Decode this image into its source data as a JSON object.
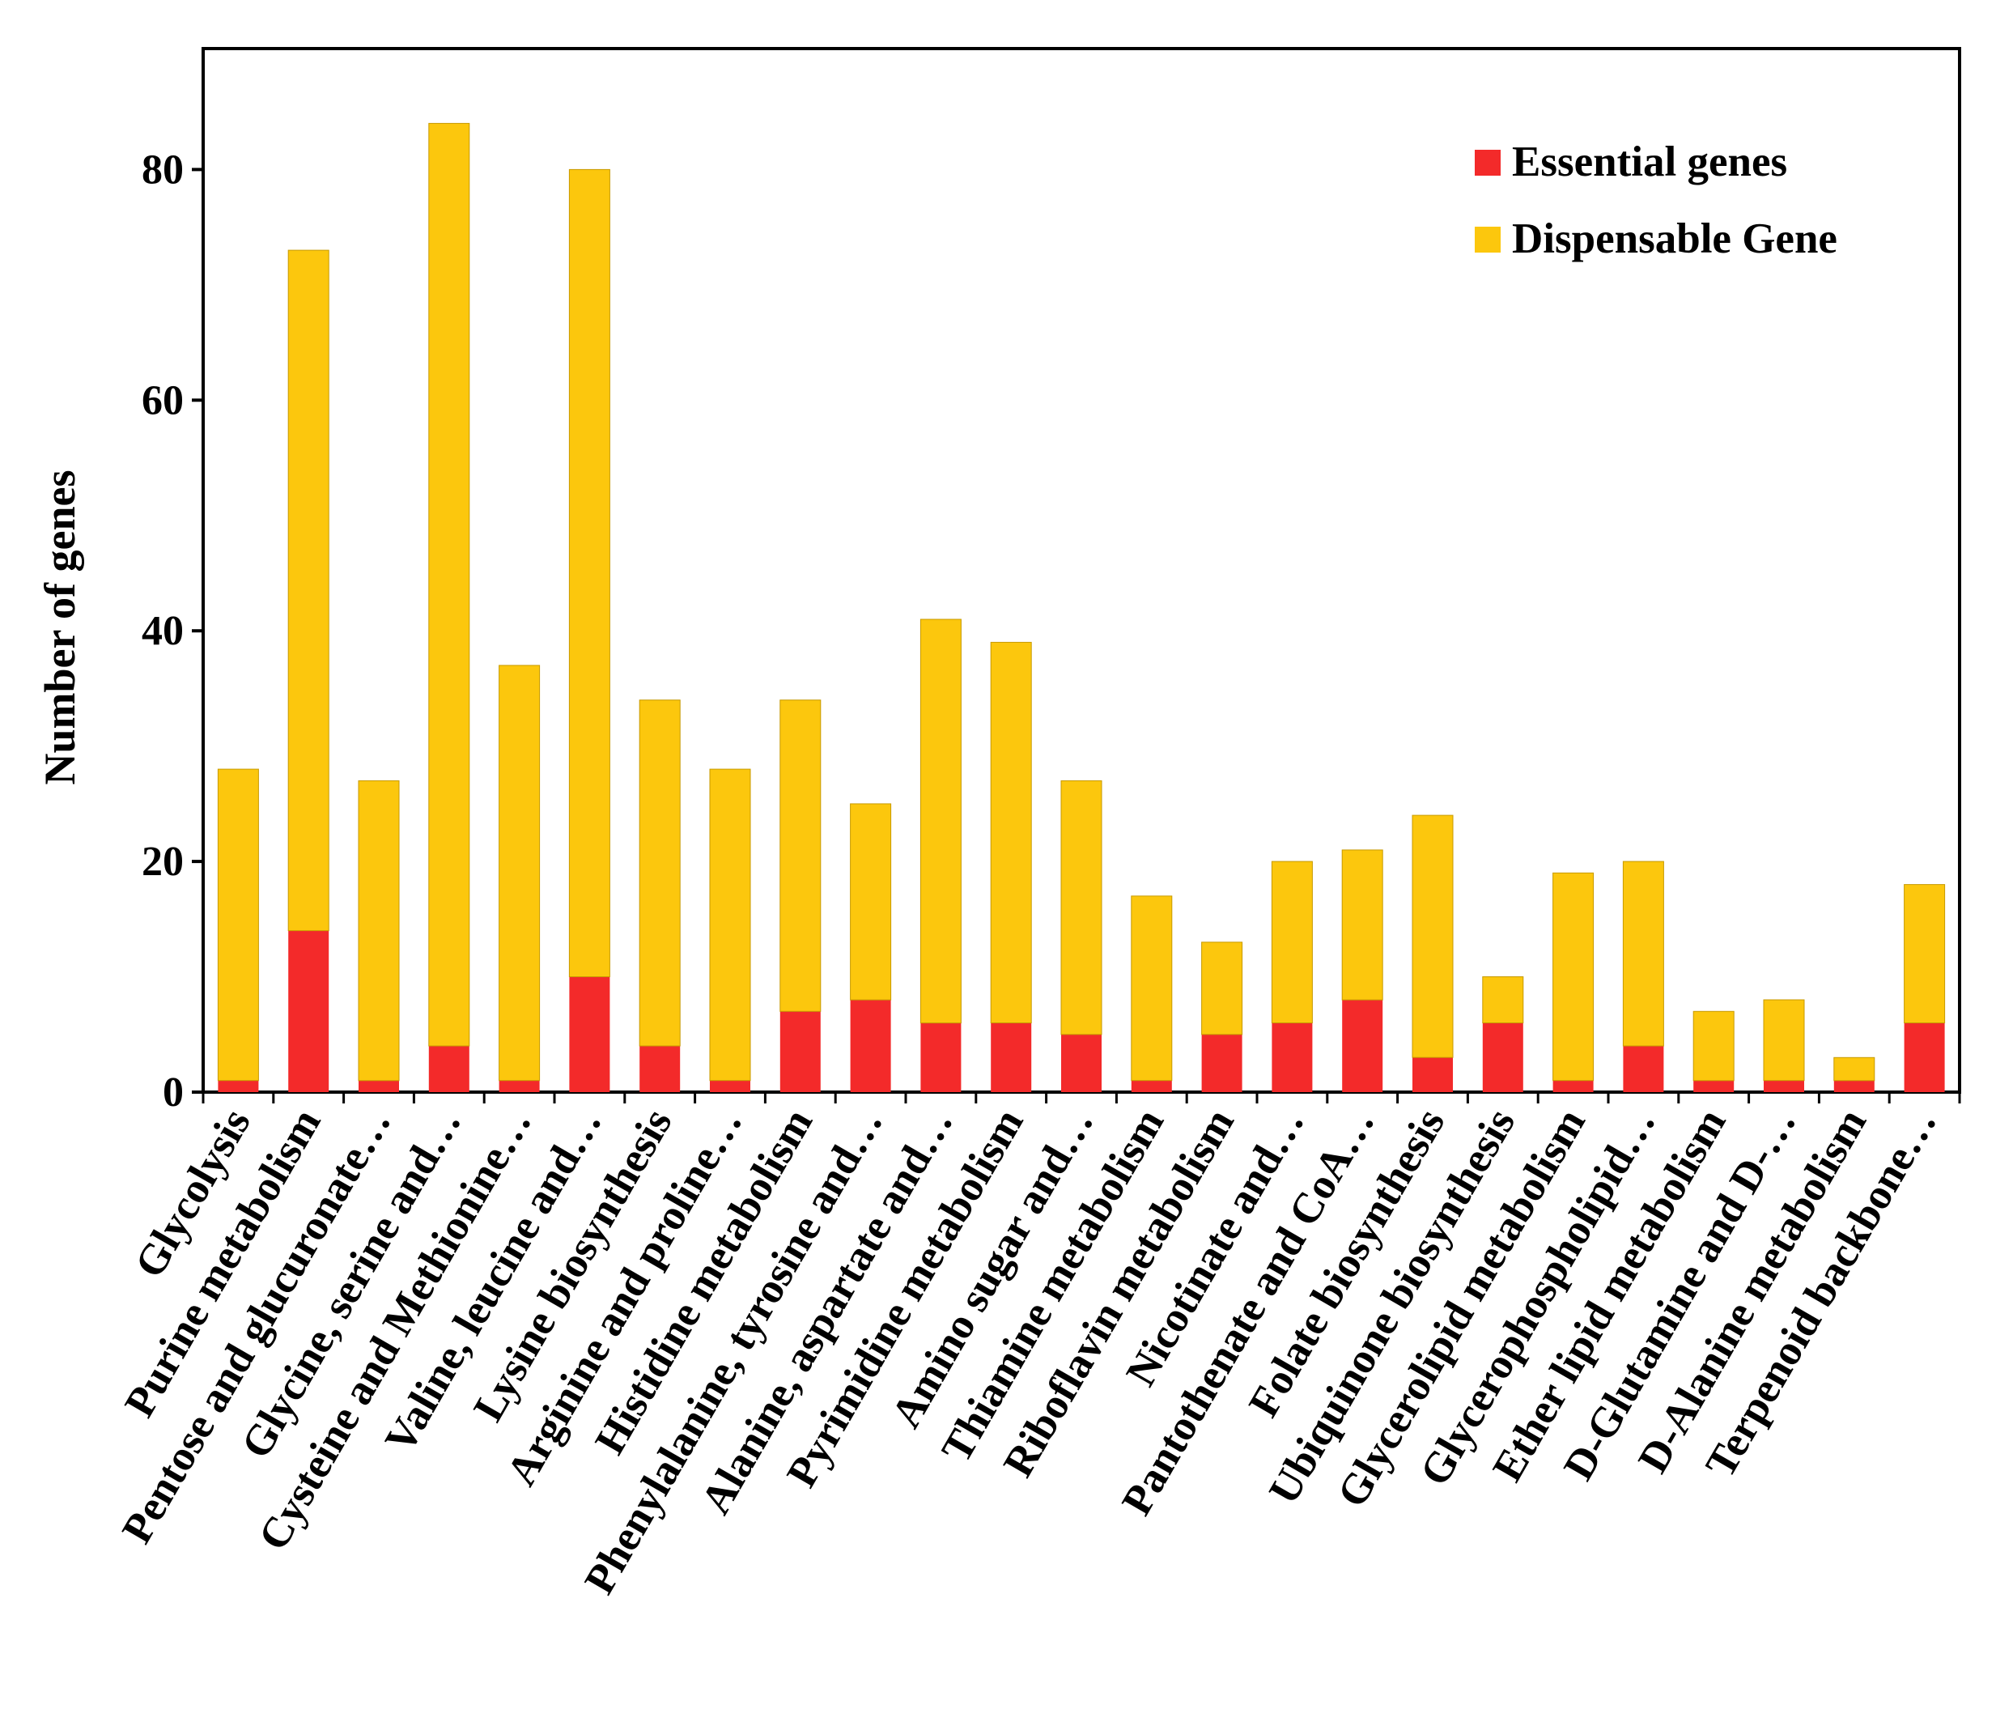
{
  "chart_data": {
    "type": "bar",
    "stacked": true,
    "title": "",
    "xlabel": "",
    "ylabel": "Number of genes",
    "ylim": [
      0,
      90
    ],
    "yticks": [
      0,
      20,
      40,
      60,
      80
    ],
    "legend_position": "top-right",
    "categories": [
      "Glycolysis",
      "Purine metabolism",
      "Pentose and glucuronate…",
      "Glycine, serine and…",
      "Cysteine and Methionine…",
      "Valine, leucine and…",
      "Lysine biosynthesis",
      "Arginine and proline…",
      "Histidine metabolism",
      "Phenylalanine, tyrosine and…",
      "Alanine, aspartate and…",
      "Pyrimidine metabolism",
      "Amino sugar and…",
      "Thiamine metabolism",
      "Riboflavin metabolism",
      "Nicotinate and…",
      "Pantothenate and CoA…",
      "Folate biosynthesis",
      "Ubiquinone biosynthesis",
      "Glycerolipid metabolism",
      "Glycerophospholipid…",
      "Ether lipid metabolism",
      "D-Glutamine and D-…",
      "D-Alanine metabolism",
      "Terpenoid backbone…"
    ],
    "series": [
      {
        "name": "Essential genes",
        "color": "#f32a2a",
        "values": [
          1,
          14,
          1,
          4,
          1,
          10,
          4,
          1,
          7,
          8,
          6,
          6,
          5,
          1,
          5,
          6,
          8,
          3,
          6,
          1,
          4,
          1,
          1,
          1,
          6
        ]
      },
      {
        "name": "Dispensable Gene",
        "color": "#fcc70d",
        "values": [
          27,
          59,
          26,
          80,
          36,
          70,
          30,
          27,
          27,
          17,
          35,
          33,
          22,
          16,
          8,
          14,
          13,
          21,
          4,
          18,
          16,
          6,
          7,
          2,
          12
        ]
      }
    ]
  }
}
